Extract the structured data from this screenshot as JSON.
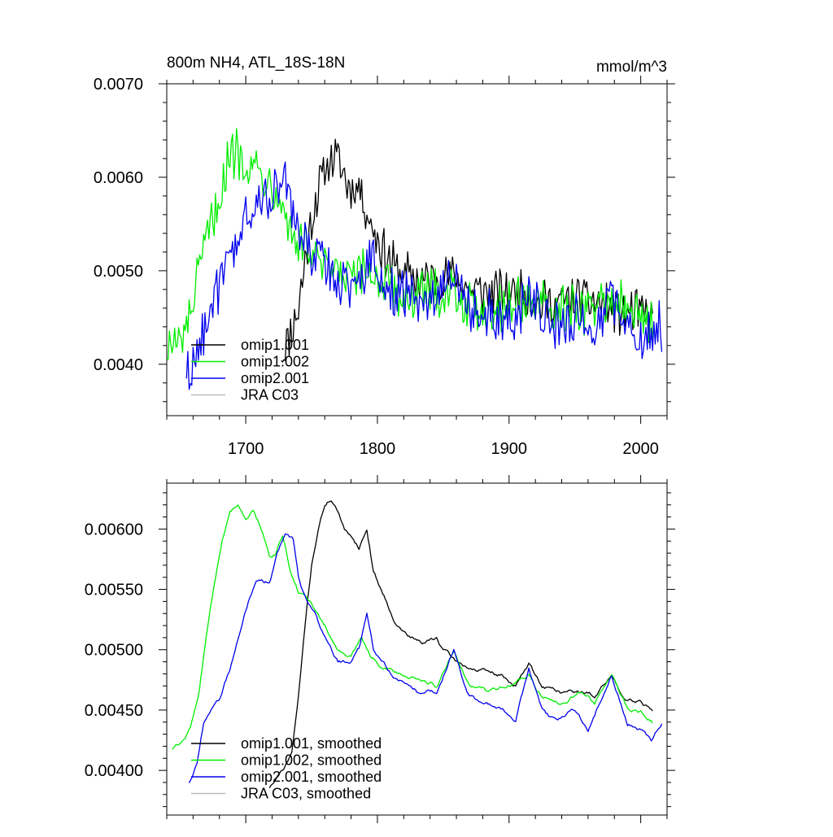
{
  "chart_data": [
    {
      "type": "line",
      "title": "800m NH4, ATL_18S-18N",
      "units": "mmol/m^3",
      "xlim": [
        1640,
        2020
      ],
      "ylim": [
        0.00345,
        0.007
      ],
      "x_ticks": [
        1700,
        1800,
        1900,
        2000
      ],
      "x_tick_labels": [
        "1700",
        "1800",
        "1900",
        "2000"
      ],
      "y_ticks": [
        0.004,
        0.005,
        0.006,
        0.007
      ],
      "y_tick_labels": [
        "0.0040",
        "0.0050",
        "0.0060",
        "0.0070"
      ],
      "legend_position": "bottom-left",
      "series": [
        {
          "name": "omip1.001",
          "color": "#000000",
          "start": 1727,
          "end": 2009,
          "noise": 0.00022,
          "knots": [
            [
              1727,
              0.0041
            ],
            [
              1733,
              0.0043
            ],
            [
              1740,
              0.0046
            ],
            [
              1746,
              0.0052
            ],
            [
              1752,
              0.0057
            ],
            [
              1758,
              0.006
            ],
            [
              1764,
              0.0062
            ],
            [
              1770,
              0.0062
            ],
            [
              1778,
              0.0059
            ],
            [
              1786,
              0.0059
            ],
            [
              1795,
              0.0055
            ],
            [
              1805,
              0.0052
            ],
            [
              1815,
              0.005
            ],
            [
              1830,
              0.0049
            ],
            [
              1840,
              0.0049
            ],
            [
              1858,
              0.00495
            ],
            [
              1870,
              0.0048
            ],
            [
              1890,
              0.00475
            ],
            [
              1910,
              0.0048
            ],
            [
              1920,
              0.00465
            ],
            [
              1935,
              0.00465
            ],
            [
              1950,
              0.0047
            ],
            [
              1970,
              0.00465
            ],
            [
              1985,
              0.00455
            ],
            [
              2000,
              0.00455
            ],
            [
              2009,
              0.00445
            ]
          ]
        },
        {
          "name": "omip1.002",
          "color": "#00ee00",
          "start": 1640,
          "end": 2009,
          "noise": 0.00024,
          "knots": [
            [
              1640,
              0.0042
            ],
            [
              1650,
              0.0042
            ],
            [
              1656,
              0.0044
            ],
            [
              1662,
              0.0048
            ],
            [
              1670,
              0.0053
            ],
            [
              1678,
              0.0057
            ],
            [
              1686,
              0.0061
            ],
            [
              1692,
              0.0063
            ],
            [
              1700,
              0.0062
            ],
            [
              1708,
              0.0061
            ],
            [
              1716,
              0.006
            ],
            [
              1724,
              0.0059
            ],
            [
              1732,
              0.0055
            ],
            [
              1740,
              0.0053
            ],
            [
              1750,
              0.0052
            ],
            [
              1760,
              0.005
            ],
            [
              1770,
              0.00495
            ],
            [
              1785,
              0.0049
            ],
            [
              1795,
              0.005
            ],
            [
              1805,
              0.00485
            ],
            [
              1820,
              0.0047
            ],
            [
              1840,
              0.00475
            ],
            [
              1858,
              0.0048
            ],
            [
              1870,
              0.0046
            ],
            [
              1890,
              0.0046
            ],
            [
              1910,
              0.0047
            ],
            [
              1925,
              0.0046
            ],
            [
              1940,
              0.00455
            ],
            [
              1960,
              0.0046
            ],
            [
              1978,
              0.0047
            ],
            [
              1990,
              0.00455
            ],
            [
              2009,
              0.0045
            ]
          ]
        },
        {
          "name": "omip2.001",
          "color": "#0000ee",
          "start": 1655,
          "end": 2016,
          "noise": 0.00024,
          "knots": [
            [
              1655,
              0.0039
            ],
            [
              1662,
              0.004
            ],
            [
              1670,
              0.0045
            ],
            [
              1680,
              0.0048
            ],
            [
              1690,
              0.0052
            ],
            [
              1700,
              0.0055
            ],
            [
              1708,
              0.0057
            ],
            [
              1716,
              0.0058
            ],
            [
              1724,
              0.0059
            ],
            [
              1732,
              0.0059
            ],
            [
              1740,
              0.0054
            ],
            [
              1750,
              0.0052
            ],
            [
              1760,
              0.0051
            ],
            [
              1770,
              0.0049
            ],
            [
              1785,
              0.00485
            ],
            [
              1795,
              0.0052
            ],
            [
              1805,
              0.0048
            ],
            [
              1820,
              0.00475
            ],
            [
              1835,
              0.00465
            ],
            [
              1858,
              0.005
            ],
            [
              1870,
              0.0046
            ],
            [
              1890,
              0.0045
            ],
            [
              1905,
              0.00445
            ],
            [
              1915,
              0.0048
            ],
            [
              1925,
              0.0045
            ],
            [
              1940,
              0.0044
            ],
            [
              1955,
              0.0045
            ],
            [
              1965,
              0.0044
            ],
            [
              1978,
              0.0047
            ],
            [
              1990,
              0.0044
            ],
            [
              2005,
              0.0043
            ],
            [
              2016,
              0.0044
            ]
          ]
        },
        {
          "name": "JRA C03",
          "color": "#bbbbbb",
          "start": null,
          "end": null,
          "noise": 0,
          "knots": []
        }
      ]
    },
    {
      "type": "line",
      "xlim": [
        1640,
        2020
      ],
      "ylim": [
        0.00363,
        0.00638
      ],
      "x_ticks": [
        1700,
        1800,
        1900,
        2000
      ],
      "y_ticks": [
        0.004,
        0.0045,
        0.005,
        0.0055,
        0.006
      ],
      "y_tick_labels": [
        "0.00400",
        "0.00450",
        "0.00500",
        "0.00550",
        "0.00600"
      ],
      "legend_position": "bottom-left",
      "series": [
        {
          "name": "omip1.001, smoothed",
          "color": "#000000",
          "start": 1718,
          "end": 2009,
          "noise": 6e-05,
          "knots": [
            [
              1718,
              0.00386
            ],
            [
              1725,
              0.00395
            ],
            [
              1730,
              0.00403
            ],
            [
              1735,
              0.00415
            ],
            [
              1740,
              0.0046
            ],
            [
              1745,
              0.0052
            ],
            [
              1750,
              0.0057
            ],
            [
              1755,
              0.006
            ],
            [
              1760,
              0.0062
            ],
            [
              1765,
              0.00625
            ],
            [
              1770,
              0.00615
            ],
            [
              1775,
              0.00598
            ],
            [
              1780,
              0.00595
            ],
            [
              1786,
              0.00585
            ],
            [
              1792,
              0.006
            ],
            [
              1797,
              0.00565
            ],
            [
              1805,
              0.00545
            ],
            [
              1815,
              0.0052
            ],
            [
              1825,
              0.0051
            ],
            [
              1835,
              0.00505
            ],
            [
              1845,
              0.0051
            ],
            [
              1850,
              0.005
            ],
            [
              1860,
              0.0049
            ],
            [
              1870,
              0.00485
            ],
            [
              1880,
              0.00482
            ],
            [
              1895,
              0.00478
            ],
            [
              1905,
              0.0047
            ],
            [
              1915,
              0.00488
            ],
            [
              1925,
              0.0047
            ],
            [
              1940,
              0.00465
            ],
            [
              1955,
              0.00465
            ],
            [
              1965,
              0.00462
            ],
            [
              1978,
              0.00478
            ],
            [
              1988,
              0.0046
            ],
            [
              2000,
              0.00458
            ],
            [
              2009,
              0.0045
            ]
          ]
        },
        {
          "name": "omip1.002, smoothed",
          "color": "#00ee00",
          "start": 1644,
          "end": 2009,
          "noise": 6e-05,
          "knots": [
            [
              1644,
              0.00418
            ],
            [
              1652,
              0.00423
            ],
            [
              1658,
              0.00435
            ],
            [
              1664,
              0.0046
            ],
            [
              1670,
              0.0051
            ],
            [
              1676,
              0.00555
            ],
            [
              1682,
              0.0059
            ],
            [
              1688,
              0.00615
            ],
            [
              1694,
              0.00622
            ],
            [
              1700,
              0.00608
            ],
            [
              1706,
              0.00615
            ],
            [
              1712,
              0.006
            ],
            [
              1718,
              0.0058
            ],
            [
              1722,
              0.0058
            ],
            [
              1728,
              0.00595
            ],
            [
              1734,
              0.00565
            ],
            [
              1740,
              0.00548
            ],
            [
              1750,
              0.00538
            ],
            [
              1760,
              0.0052
            ],
            [
              1770,
              0.005
            ],
            [
              1780,
              0.00495
            ],
            [
              1788,
              0.0051
            ],
            [
              1795,
              0.00495
            ],
            [
              1805,
              0.00485
            ],
            [
              1820,
              0.0048
            ],
            [
              1835,
              0.00475
            ],
            [
              1845,
              0.0047
            ],
            [
              1858,
              0.005
            ],
            [
              1870,
              0.0047
            ],
            [
              1885,
              0.00465
            ],
            [
              1900,
              0.0047
            ],
            [
              1915,
              0.0048
            ],
            [
              1925,
              0.0046
            ],
            [
              1940,
              0.00455
            ],
            [
              1955,
              0.00465
            ],
            [
              1965,
              0.00455
            ],
            [
              1978,
              0.00478
            ],
            [
              1990,
              0.0045
            ],
            [
              2000,
              0.00448
            ],
            [
              2009,
              0.0044
            ]
          ]
        },
        {
          "name": "omip2.001, smoothed",
          "color": "#0000ee",
          "start": 1657,
          "end": 2016,
          "noise": 6e-05,
          "knots": [
            [
              1657,
              0.0039
            ],
            [
              1663,
              0.00405
            ],
            [
              1668,
              0.0044
            ],
            [
              1674,
              0.00453
            ],
            [
              1680,
              0.0046
            ],
            [
              1688,
              0.00485
            ],
            [
              1695,
              0.00515
            ],
            [
              1702,
              0.0054
            ],
            [
              1708,
              0.0056
            ],
            [
              1712,
              0.0056
            ],
            [
              1718,
              0.00555
            ],
            [
              1724,
              0.0058
            ],
            [
              1730,
              0.00595
            ],
            [
              1736,
              0.0059
            ],
            [
              1740,
              0.0056
            ],
            [
              1746,
              0.0054
            ],
            [
              1752,
              0.0053
            ],
            [
              1760,
              0.0051
            ],
            [
              1770,
              0.0049
            ],
            [
              1780,
              0.0049
            ],
            [
              1786,
              0.005
            ],
            [
              1792,
              0.0053
            ],
            [
              1797,
              0.005
            ],
            [
              1805,
              0.0049
            ],
            [
              1815,
              0.00475
            ],
            [
              1830,
              0.00465
            ],
            [
              1845,
              0.00465
            ],
            [
              1858,
              0.005
            ],
            [
              1868,
              0.00465
            ],
            [
              1880,
              0.00455
            ],
            [
              1895,
              0.0045
            ],
            [
              1905,
              0.0044
            ],
            [
              1915,
              0.00485
            ],
            [
              1925,
              0.0045
            ],
            [
              1935,
              0.0044
            ],
            [
              1950,
              0.0045
            ],
            [
              1960,
              0.00435
            ],
            [
              1978,
              0.00478
            ],
            [
              1990,
              0.0044
            ],
            [
              2000,
              0.00435
            ],
            [
              2008,
              0.00425
            ],
            [
              2016,
              0.0044
            ]
          ]
        },
        {
          "name": "JRA C03, smoothed",
          "color": "#bbbbbb",
          "start": null,
          "end": null,
          "noise": 0,
          "knots": []
        }
      ]
    }
  ]
}
